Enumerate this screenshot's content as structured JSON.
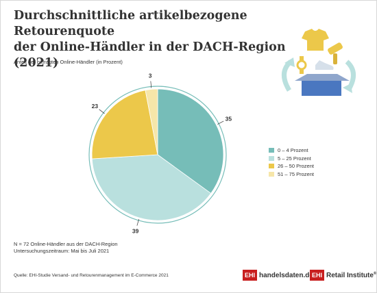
{
  "header": {
    "title_line1": "Durchschnittliche artikelbezogene Retourenquote",
    "title_line2": "der Online-Händler in der DACH-Region (2021)",
    "subtitle": "Anteil der befragten Online-Händler (in Prozent)"
  },
  "notes": {
    "sample": "N = 72 Online-Händler aus der DACH-Region",
    "period": "Untersuchungszeitraum: Mai bis Juli 2021",
    "source": "Quelle: EHI-Studie Versand- und Retourenmanagement im E-Commerce 2021"
  },
  "logos": {
    "box": "EHI",
    "site": "handelsdaten.de",
    "institute": "Retail Institute",
    "reg": "®"
  },
  "colors": {
    "slice_0_4": "#76bdb8",
    "slice_5_25": "#b9e0de",
    "slice_26_50": "#ecc84a",
    "slice_51_75": "#f6e6a9",
    "logo_red": "#c81e1e",
    "text": "#333333"
  },
  "chart_data": {
    "type": "pie",
    "categories": [
      "0 – 4 Prozent",
      "5 – 25 Prozent",
      "26 – 50 Prozent",
      "51 – 75 Prozent"
    ],
    "values": [
      35,
      39,
      23,
      3
    ],
    "colors": [
      "#76bdb8",
      "#b9e0de",
      "#ecc84a",
      "#f6e6a9"
    ],
    "data_labels": [
      "35",
      "39",
      "23",
      "3"
    ],
    "start_angle_deg": 0,
    "direction": "clockwise",
    "legend_position": "right"
  }
}
